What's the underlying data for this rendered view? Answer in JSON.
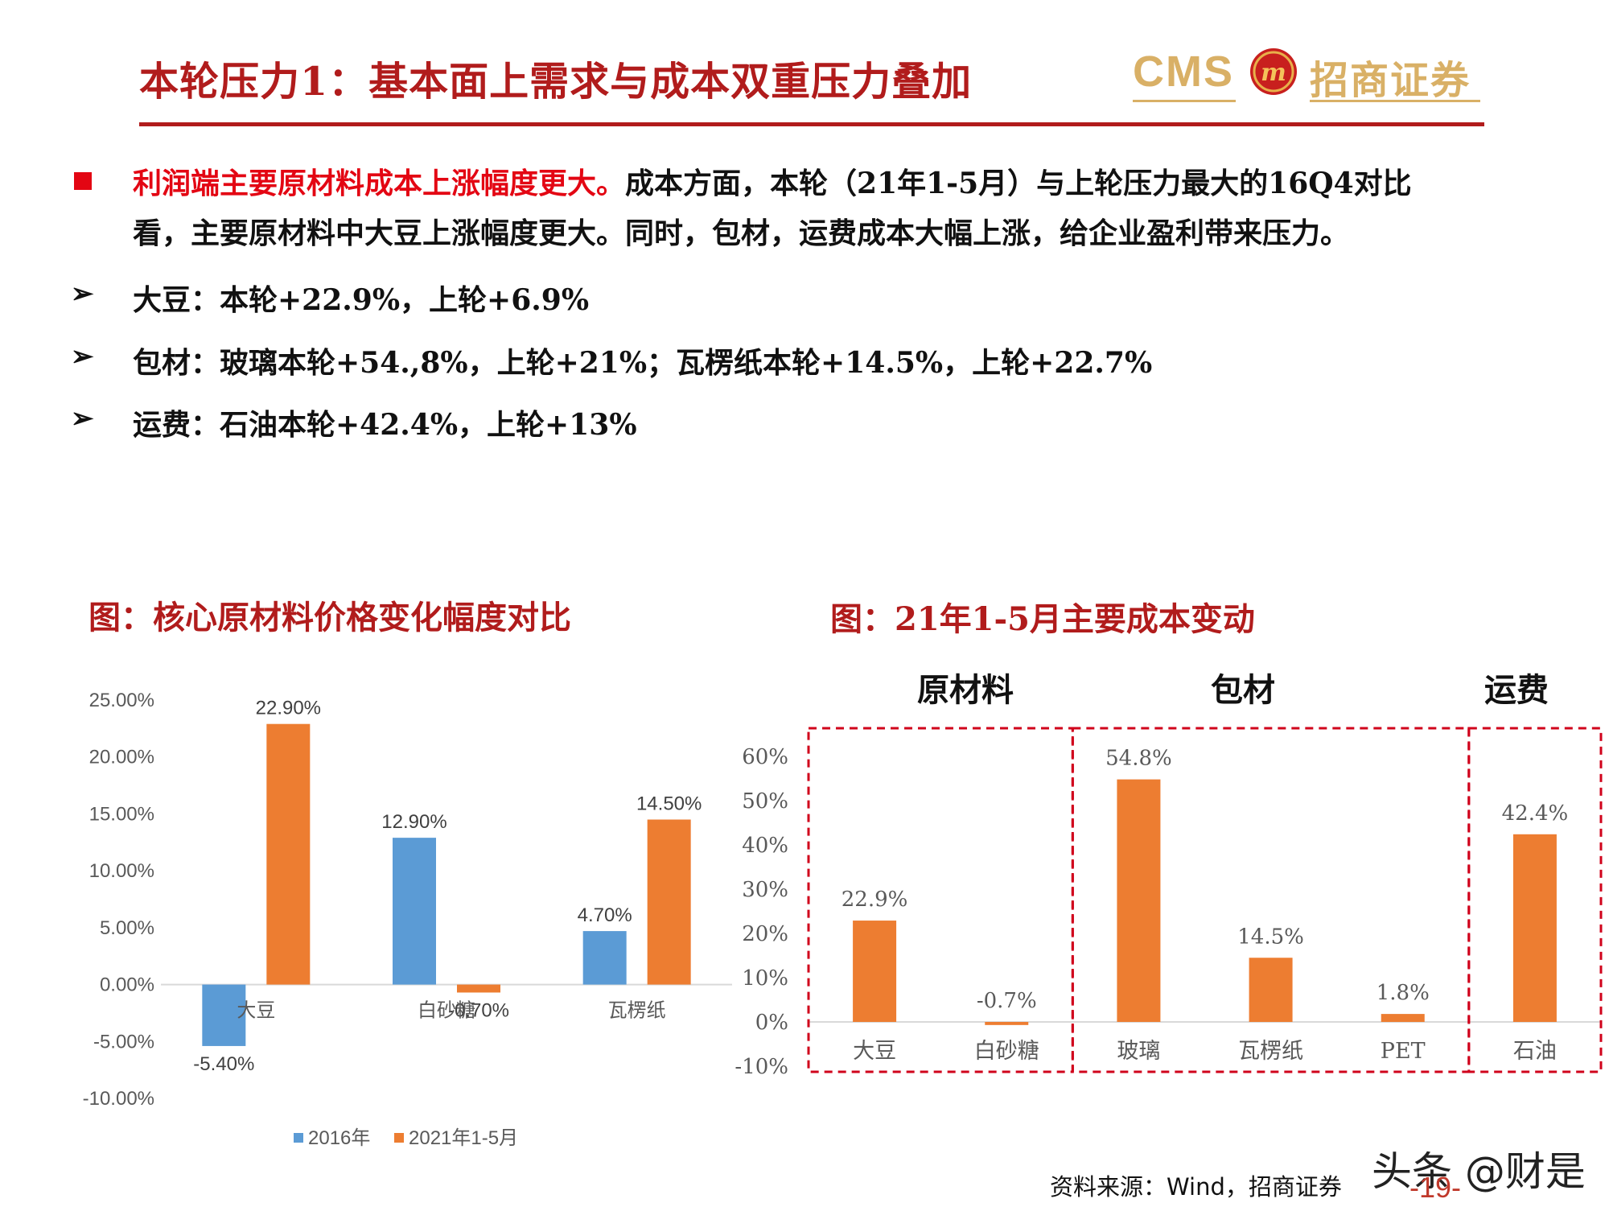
{
  "header": {
    "title": "本轮压力1：基本面上需求与成本双重压力叠加",
    "logo_cms": "CMS",
    "logo_cn": "招商证券",
    "logo_emblem": "m",
    "accent_color": "#b11c1c"
  },
  "body": {
    "p1_red": "利润端主要原材料成本上涨幅度更大。",
    "p1_rest": "成本方面，本轮（21年1-5月）与上轮压力最大的16Q4对比",
    "p2": "看，主要原材料中大豆上涨幅度更大。同时，包材，运费成本大幅上涨，给企业盈利带来压力。",
    "bullets": [
      "大豆：本轮+22.9%，上轮+6.9%",
      "包材：玻璃本轮+54.,8%，上轮+21%；瓦楞纸本轮+14.5%，上轮+22.7%",
      "运费：石油本轮+42.4%，上轮+13%"
    ],
    "arrow_glyph": "➢"
  },
  "chart1_title": "图：核心原材料价格变化幅度对比",
  "chart2_title": "图：21年1-5月主要成本变动",
  "chart2_groups": [
    "原材料",
    "包材",
    "运费"
  ],
  "chart_data": [
    {
      "type": "bar",
      "categories": [
        "大豆",
        "白砂糖",
        "瓦楞纸"
      ],
      "series": [
        {
          "name": "2016年",
          "values": [
            -5.4,
            12.9,
            4.7
          ],
          "labels": [
            "-5.40%",
            "12.90%",
            "4.70%"
          ],
          "color": "#5b9bd5"
        },
        {
          "name": "2021年1-5月",
          "values": [
            22.9,
            -0.7,
            14.5
          ],
          "labels": [
            "22.90%",
            "-0.70%",
            "14.50%"
          ],
          "color": "#ed7d31"
        }
      ],
      "yticks": [
        "25.00%",
        "20.00%",
        "15.00%",
        "10.00%",
        "5.00%",
        "0.00%",
        "-5.00%",
        "-10.00%"
      ],
      "ylim": [
        -10,
        25
      ],
      "legend_position": "bottom"
    },
    {
      "type": "bar",
      "categories": [
        "大豆",
        "白砂糖",
        "玻璃",
        "瓦楞纸",
        "PET",
        "石油"
      ],
      "values": [
        22.9,
        -0.7,
        54.8,
        14.5,
        1.8,
        42.4
      ],
      "labels": [
        "22.9%",
        "-0.7%",
        "54.8%",
        "14.5%",
        "1.8%",
        "42.4%"
      ],
      "color": "#ed7d31",
      "yticks": [
        "60%",
        "50%",
        "40%",
        "30%",
        "20%",
        "10%",
        "0%",
        "-10%"
      ],
      "ylim": [
        -10,
        60
      ],
      "group_box_color": "#d0021b"
    }
  ],
  "footer": {
    "source": "资料来源：Wind，招商证券",
    "page": "-19-",
    "watermark": "头条 @财是"
  }
}
